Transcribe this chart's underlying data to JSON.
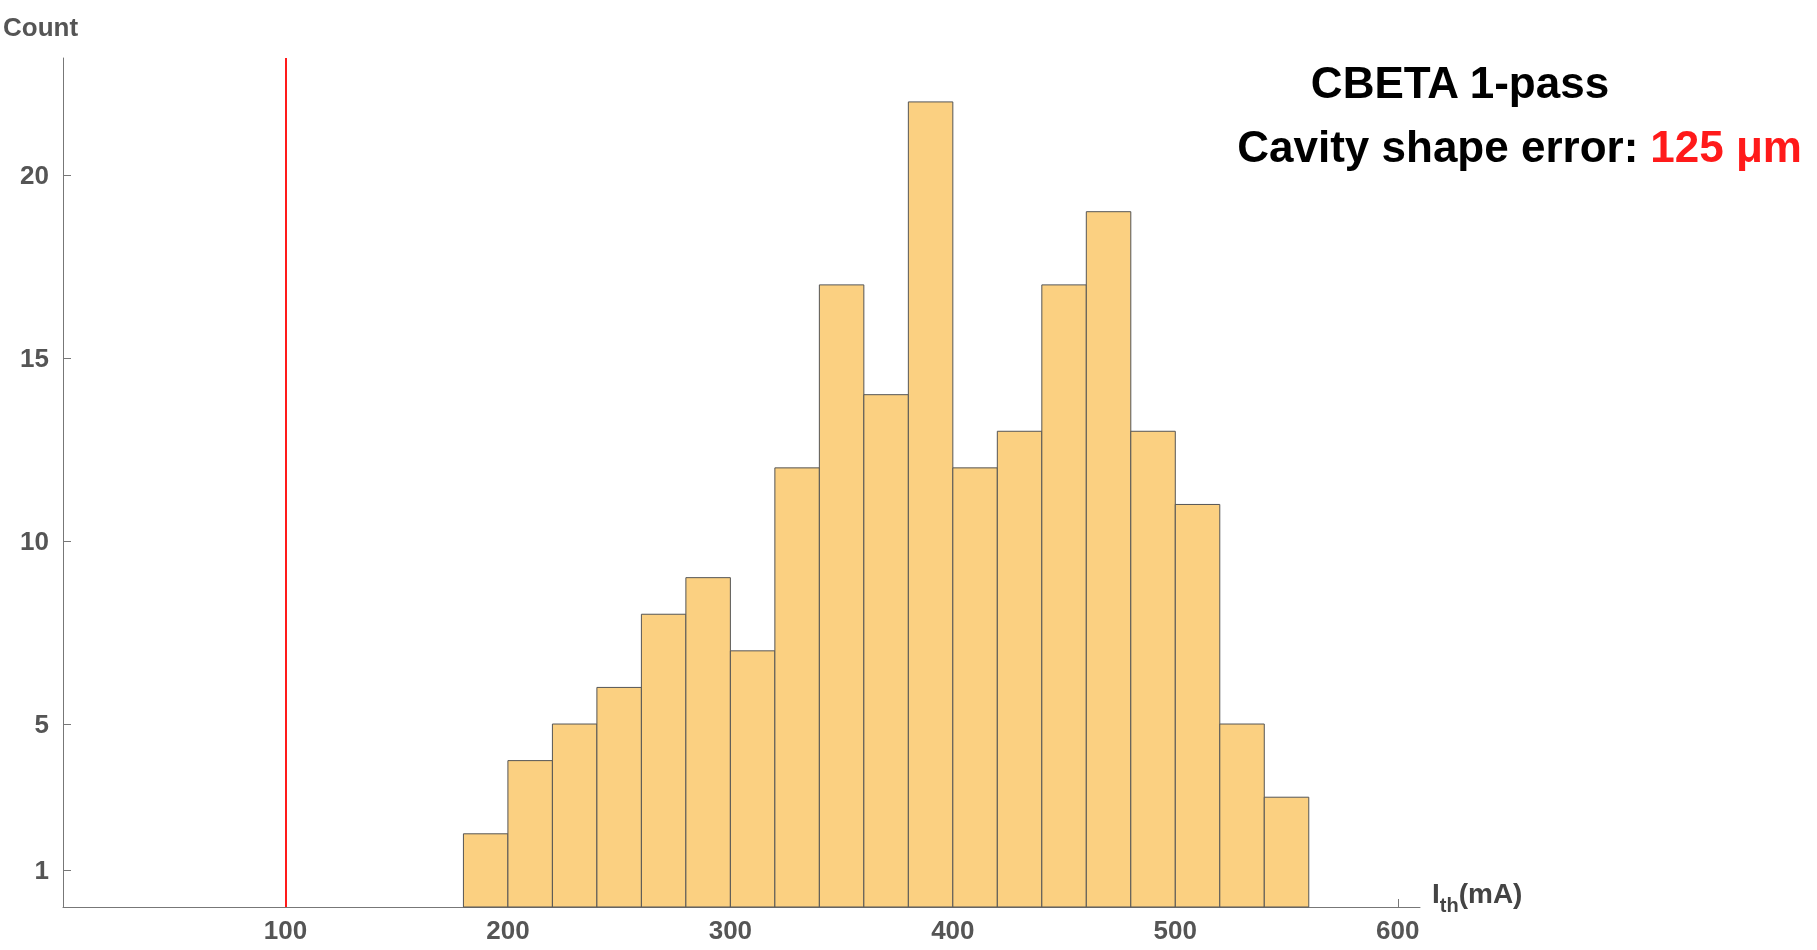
{
  "chart_data": {
    "type": "histogram",
    "title": "CBETA 1-pass",
    "subtitle": "Cavity shape error:",
    "annotations": [
      "125 μm"
    ],
    "xlabel": "I$_{th}$(mA)",
    "ylabel": "Count",
    "bins": [
      180,
      200,
      220,
      240,
      260,
      280,
      300,
      320,
      340,
      360,
      380,
      400,
      420,
      440,
      460,
      480,
      500,
      520,
      540,
      560
    ],
    "values": [
      2,
      4,
      5,
      6,
      8,
      9,
      7,
      12,
      17,
      14,
      22,
      12,
      13,
      17,
      19,
      13,
      11,
      5,
      3
    ],
    "color": "#fbd081",
    "xlim": [
      0,
      610
    ],
    "xticks": [
      100,
      200,
      300,
      400,
      500,
      600
    ],
    "ylim": [
      0,
      23.2
    ],
    "yticks": [
      1,
      5,
      10,
      15,
      20
    ],
    "ref_lines": [
      {
        "axis": "x",
        "value": 100,
        "color": "#ff1a1a"
      }
    ],
    "grid": false
  }
}
